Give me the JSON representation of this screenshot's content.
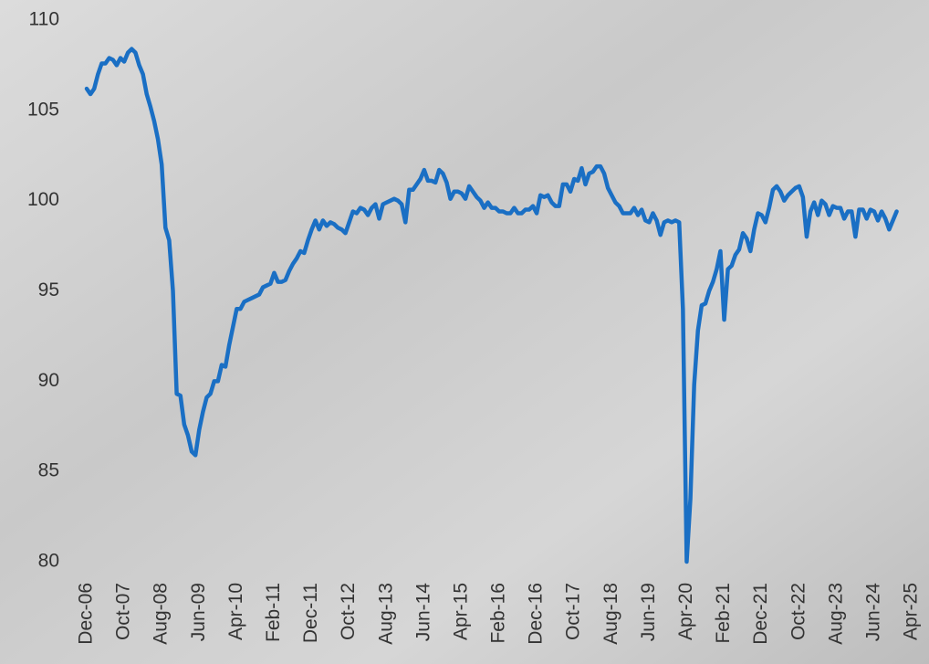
{
  "chart_data": {
    "type": "line",
    "categories": [
      "Dec-06",
      null,
      null,
      null,
      null,
      null,
      null,
      null,
      null,
      null,
      "Oct-07",
      null,
      null,
      null,
      null,
      null,
      null,
      null,
      null,
      null,
      "Aug-08",
      null,
      null,
      null,
      null,
      null,
      null,
      null,
      null,
      null,
      "Jun-09",
      null,
      null,
      null,
      null,
      null,
      null,
      null,
      null,
      null,
      "Apr-10",
      null,
      null,
      null,
      null,
      null,
      null,
      null,
      null,
      null,
      "Feb-11",
      null,
      null,
      null,
      null,
      null,
      null,
      null,
      null,
      null,
      "Dec-11",
      null,
      null,
      null,
      null,
      null,
      null,
      null,
      null,
      null,
      "Oct-12",
      null,
      null,
      null,
      null,
      null,
      null,
      null,
      null,
      null,
      "Aug-13",
      null,
      null,
      null,
      null,
      null,
      null,
      null,
      null,
      null,
      "Jun-14",
      null,
      null,
      null,
      null,
      null,
      null,
      null,
      null,
      null,
      "Apr-15",
      null,
      null,
      null,
      null,
      null,
      null,
      null,
      null,
      null,
      "Feb-16",
      null,
      null,
      null,
      null,
      null,
      null,
      null,
      null,
      null,
      "Dec-16",
      null,
      null,
      null,
      null,
      null,
      null,
      null,
      null,
      null,
      "Oct-17",
      null,
      null,
      null,
      null,
      null,
      null,
      null,
      null,
      null,
      "Aug-18",
      null,
      null,
      null,
      null,
      null,
      null,
      null,
      null,
      null,
      "Jun-19",
      null,
      null,
      null,
      null,
      null,
      null,
      null,
      null,
      null,
      "Apr-20",
      null,
      null,
      null,
      null,
      null,
      null,
      null,
      null,
      null,
      "Feb-21",
      null,
      null,
      null,
      null,
      null,
      null,
      null,
      null,
      null,
      "Dec-21",
      null,
      null,
      null,
      null,
      null,
      null,
      null,
      null,
      null,
      "Oct-22",
      null,
      null,
      null,
      null,
      null,
      null,
      null,
      null,
      null,
      "Aug-23",
      null,
      null,
      null,
      null,
      null,
      null,
      null,
      null,
      null,
      "Jun-24",
      null,
      null,
      null,
      null,
      null,
      null,
      null,
      null,
      null,
      "Apr-25"
    ],
    "values": [
      106.2,
      105.9,
      106.2,
      107.0,
      107.6,
      107.6,
      107.9,
      107.8,
      107.5,
      107.9,
      107.7,
      108.2,
      108.4,
      108.2,
      107.5,
      107.0,
      105.9,
      105.2,
      104.4,
      103.4,
      102.0,
      98.5,
      97.8,
      95.0,
      89.3,
      89.2,
      87.6,
      87.0,
      86.1,
      85.9,
      87.3,
      88.3,
      89.1,
      89.3,
      90.0,
      90.0,
      90.9,
      90.8,
      92.0,
      93.0,
      94.0,
      94.0,
      94.4,
      94.5,
      94.6,
      94.7,
      94.8,
      95.2,
      95.3,
      95.4,
      96.0,
      95.5,
      95.5,
      95.6,
      96.1,
      96.5,
      96.8,
      97.2,
      97.1,
      97.8,
      98.4,
      98.9,
      98.4,
      98.9,
      98.6,
      98.8,
      98.7,
      98.5,
      98.4,
      98.2,
      98.8,
      99.4,
      99.3,
      99.6,
      99.5,
      99.2,
      99.6,
      99.8,
      99.0,
      99.8,
      99.9,
      100.0,
      100.1,
      100.0,
      99.8,
      98.8,
      100.6,
      100.6,
      100.9,
      101.2,
      101.7,
      101.1,
      101.1,
      101.0,
      101.7,
      101.5,
      101.0,
      100.1,
      100.5,
      100.5,
      100.4,
      100.1,
      100.8,
      100.5,
      100.2,
      100.0,
      99.6,
      99.9,
      99.6,
      99.6,
      99.4,
      99.4,
      99.3,
      99.3,
      99.6,
      99.3,
      99.3,
      99.5,
      99.5,
      99.7,
      99.3,
      100.3,
      100.2,
      100.3,
      99.9,
      99.7,
      99.7,
      100.9,
      100.9,
      100.5,
      101.2,
      101.1,
      101.8,
      100.9,
      101.5,
      101.6,
      101.9,
      101.9,
      101.5,
      100.7,
      100.3,
      99.9,
      99.7,
      99.3,
      99.3,
      99.3,
      99.6,
      99.2,
      99.5,
      98.9,
      98.8,
      99.3,
      98.9,
      98.1,
      98.8,
      98.9,
      98.8,
      98.9,
      98.8,
      94.0,
      80.0,
      83.5,
      89.8,
      92.8,
      94.2,
      94.3,
      95.0,
      95.5,
      96.2,
      97.2,
      93.4,
      96.2,
      96.4,
      97.0,
      97.3,
      98.2,
      97.9,
      97.2,
      98.4,
      99.3,
      99.2,
      98.8,
      99.6,
      100.6,
      100.8,
      100.5,
      100.0,
      100.3,
      100.5,
      100.7,
      100.8,
      100.2,
      98.0,
      99.4,
      99.9,
      99.2,
      100.0,
      99.8,
      99.2,
      99.7,
      99.6,
      99.6,
      99.0,
      99.4,
      99.4,
      98.0,
      99.5,
      99.5,
      99.0,
      99.5,
      99.4,
      98.9,
      99.4,
      99.0,
      98.4,
      98.9,
      99.4,
      null,
      null,
      null,
      null
    ],
    "color": "#1a6fc4",
    "ylim": [
      80,
      110
    ],
    "yticks": [
      80,
      85,
      90,
      95,
      100,
      105,
      110
    ],
    "grid": false
  }
}
